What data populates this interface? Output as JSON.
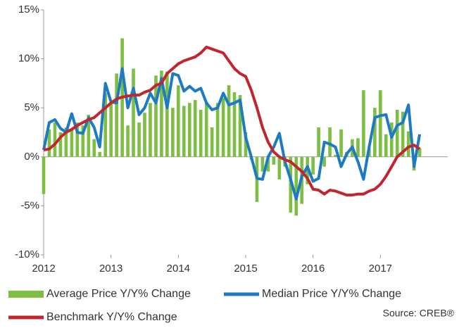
{
  "chart_data": {
    "type": "combo",
    "x": [
      2012,
      2012.083,
      2012.167,
      2012.25,
      2012.333,
      2012.417,
      2012.5,
      2012.583,
      2012.667,
      2012.75,
      2012.833,
      2012.917,
      2013,
      2013.083,
      2013.167,
      2013.25,
      2013.333,
      2013.417,
      2013.5,
      2013.583,
      2013.667,
      2013.75,
      2013.833,
      2013.917,
      2014,
      2014.083,
      2014.167,
      2014.25,
      2014.333,
      2014.417,
      2014.5,
      2014.583,
      2014.667,
      2014.75,
      2014.833,
      2014.917,
      2015,
      2015.083,
      2015.167,
      2015.25,
      2015.333,
      2015.417,
      2015.5,
      2015.583,
      2015.667,
      2015.75,
      2015.833,
      2015.917,
      2016,
      2016.083,
      2016.167,
      2016.25,
      2016.333,
      2016.417,
      2016.5,
      2016.583,
      2016.667,
      2016.75,
      2016.833,
      2016.917,
      2017,
      2017.083,
      2017.167,
      2017.25,
      2017.333,
      2017.417,
      2017.5,
      2017.583
    ],
    "series": [
      {
        "name": "Average Price Y/Y% Change",
        "type": "bar",
        "color": "#7cbf42",
        "values": [
          -3.8,
          2.8,
          3.5,
          2.5,
          3.0,
          2.8,
          3.5,
          3.2,
          4.3,
          1.8,
          0.5,
          6.5,
          5.5,
          8.5,
          12.1,
          3.2,
          9.0,
          3.5,
          4.5,
          5.5,
          8.3,
          8.8,
          8.7,
          5.0,
          7.3,
          5.2,
          5.5,
          5.8,
          4.8,
          5.6,
          3.0,
          5.5,
          6.0,
          7.3,
          6.6,
          6.3,
          2.5,
          -0.3,
          -4.6,
          -1.5,
          -1.5,
          -0.8,
          -2.3,
          -1.0,
          -5.7,
          -6.0,
          -4.8,
          -2.8,
          -1.8,
          3.0,
          -1.0,
          3.0,
          0.2,
          2.8,
          0.5,
          1.8,
          1.9,
          6.8,
          0.9,
          5.0,
          6.8,
          2.3,
          3.5,
          4.8,
          4.6,
          2.6,
          -1.4,
          0.9
        ]
      },
      {
        "name": "Median Price Y/Y% Change",
        "type": "line",
        "color": "#1f7bc1",
        "values": [
          0.7,
          3.5,
          3.8,
          2.9,
          2.5,
          4.4,
          2.5,
          2.4,
          4.0,
          3.0,
          1.0,
          7.5,
          5.6,
          5.5,
          9.0,
          5.0,
          7.0,
          4.3,
          5.0,
          6.5,
          5.5,
          8.0,
          5.0,
          8.5,
          8.3,
          6.7,
          7.2,
          6.7,
          7.0,
          5.5,
          4.8,
          5.0,
          6.5,
          5.3,
          5.5,
          5.8,
          2.0,
          0.0,
          -2.2,
          -2.3,
          0.0,
          1.0,
          2.4,
          -0.5,
          -2.3,
          -4.3,
          -2.0,
          -1.0,
          -2.5,
          -2.2,
          1.5,
          1.3,
          1.0,
          -1.0,
          0.3,
          1.0,
          -0.5,
          -2.3,
          1.0,
          4.0,
          4.2,
          4.3,
          2.0,
          3.2,
          3.5,
          5.3,
          -1.0,
          2.3
        ]
      },
      {
        "name": "Benchmark Y/Y% Change",
        "type": "line",
        "color": "#c0272d",
        "values": [
          0.7,
          0.8,
          1.3,
          2.0,
          2.5,
          2.8,
          3.2,
          3.5,
          3.8,
          4.0,
          4.5,
          5.0,
          5.5,
          5.9,
          6.1,
          6.2,
          6.3,
          6.3,
          6.6,
          6.8,
          7.3,
          7.5,
          8.5,
          9.0,
          9.5,
          9.8,
          10.0,
          10.2,
          10.6,
          11.2,
          11.0,
          10.8,
          10.6,
          9.8,
          9.0,
          8.5,
          8.2,
          6.8,
          5.0,
          3.0,
          1.5,
          0.5,
          0.0,
          -0.3,
          -0.5,
          -1.0,
          -1.5,
          -2.2,
          -3.3,
          -3.4,
          -3.8,
          -3.4,
          -3.5,
          -3.7,
          -3.9,
          -3.9,
          -3.8,
          -3.8,
          -3.5,
          -3.3,
          -2.8,
          -2.0,
          -1.0,
          0.0,
          0.5,
          1.0,
          1.2,
          0.8
        ]
      }
    ],
    "xlim": [
      2012,
      2018
    ],
    "xticks": [
      2012,
      2013,
      2014,
      2015,
      2016,
      2017
    ],
    "ylim": [
      -10,
      15
    ],
    "yticks": [
      {
        "value": -10,
        "label": "-10%"
      },
      {
        "value": -5,
        "label": "-5%"
      },
      {
        "value": 0,
        "label": "0%"
      },
      {
        "value": 5,
        "label": "5%"
      },
      {
        "value": 10,
        "label": "10%"
      },
      {
        "value": 15,
        "label": "15%"
      }
    ],
    "grid": false,
    "annotation": "Source: CREB®"
  }
}
